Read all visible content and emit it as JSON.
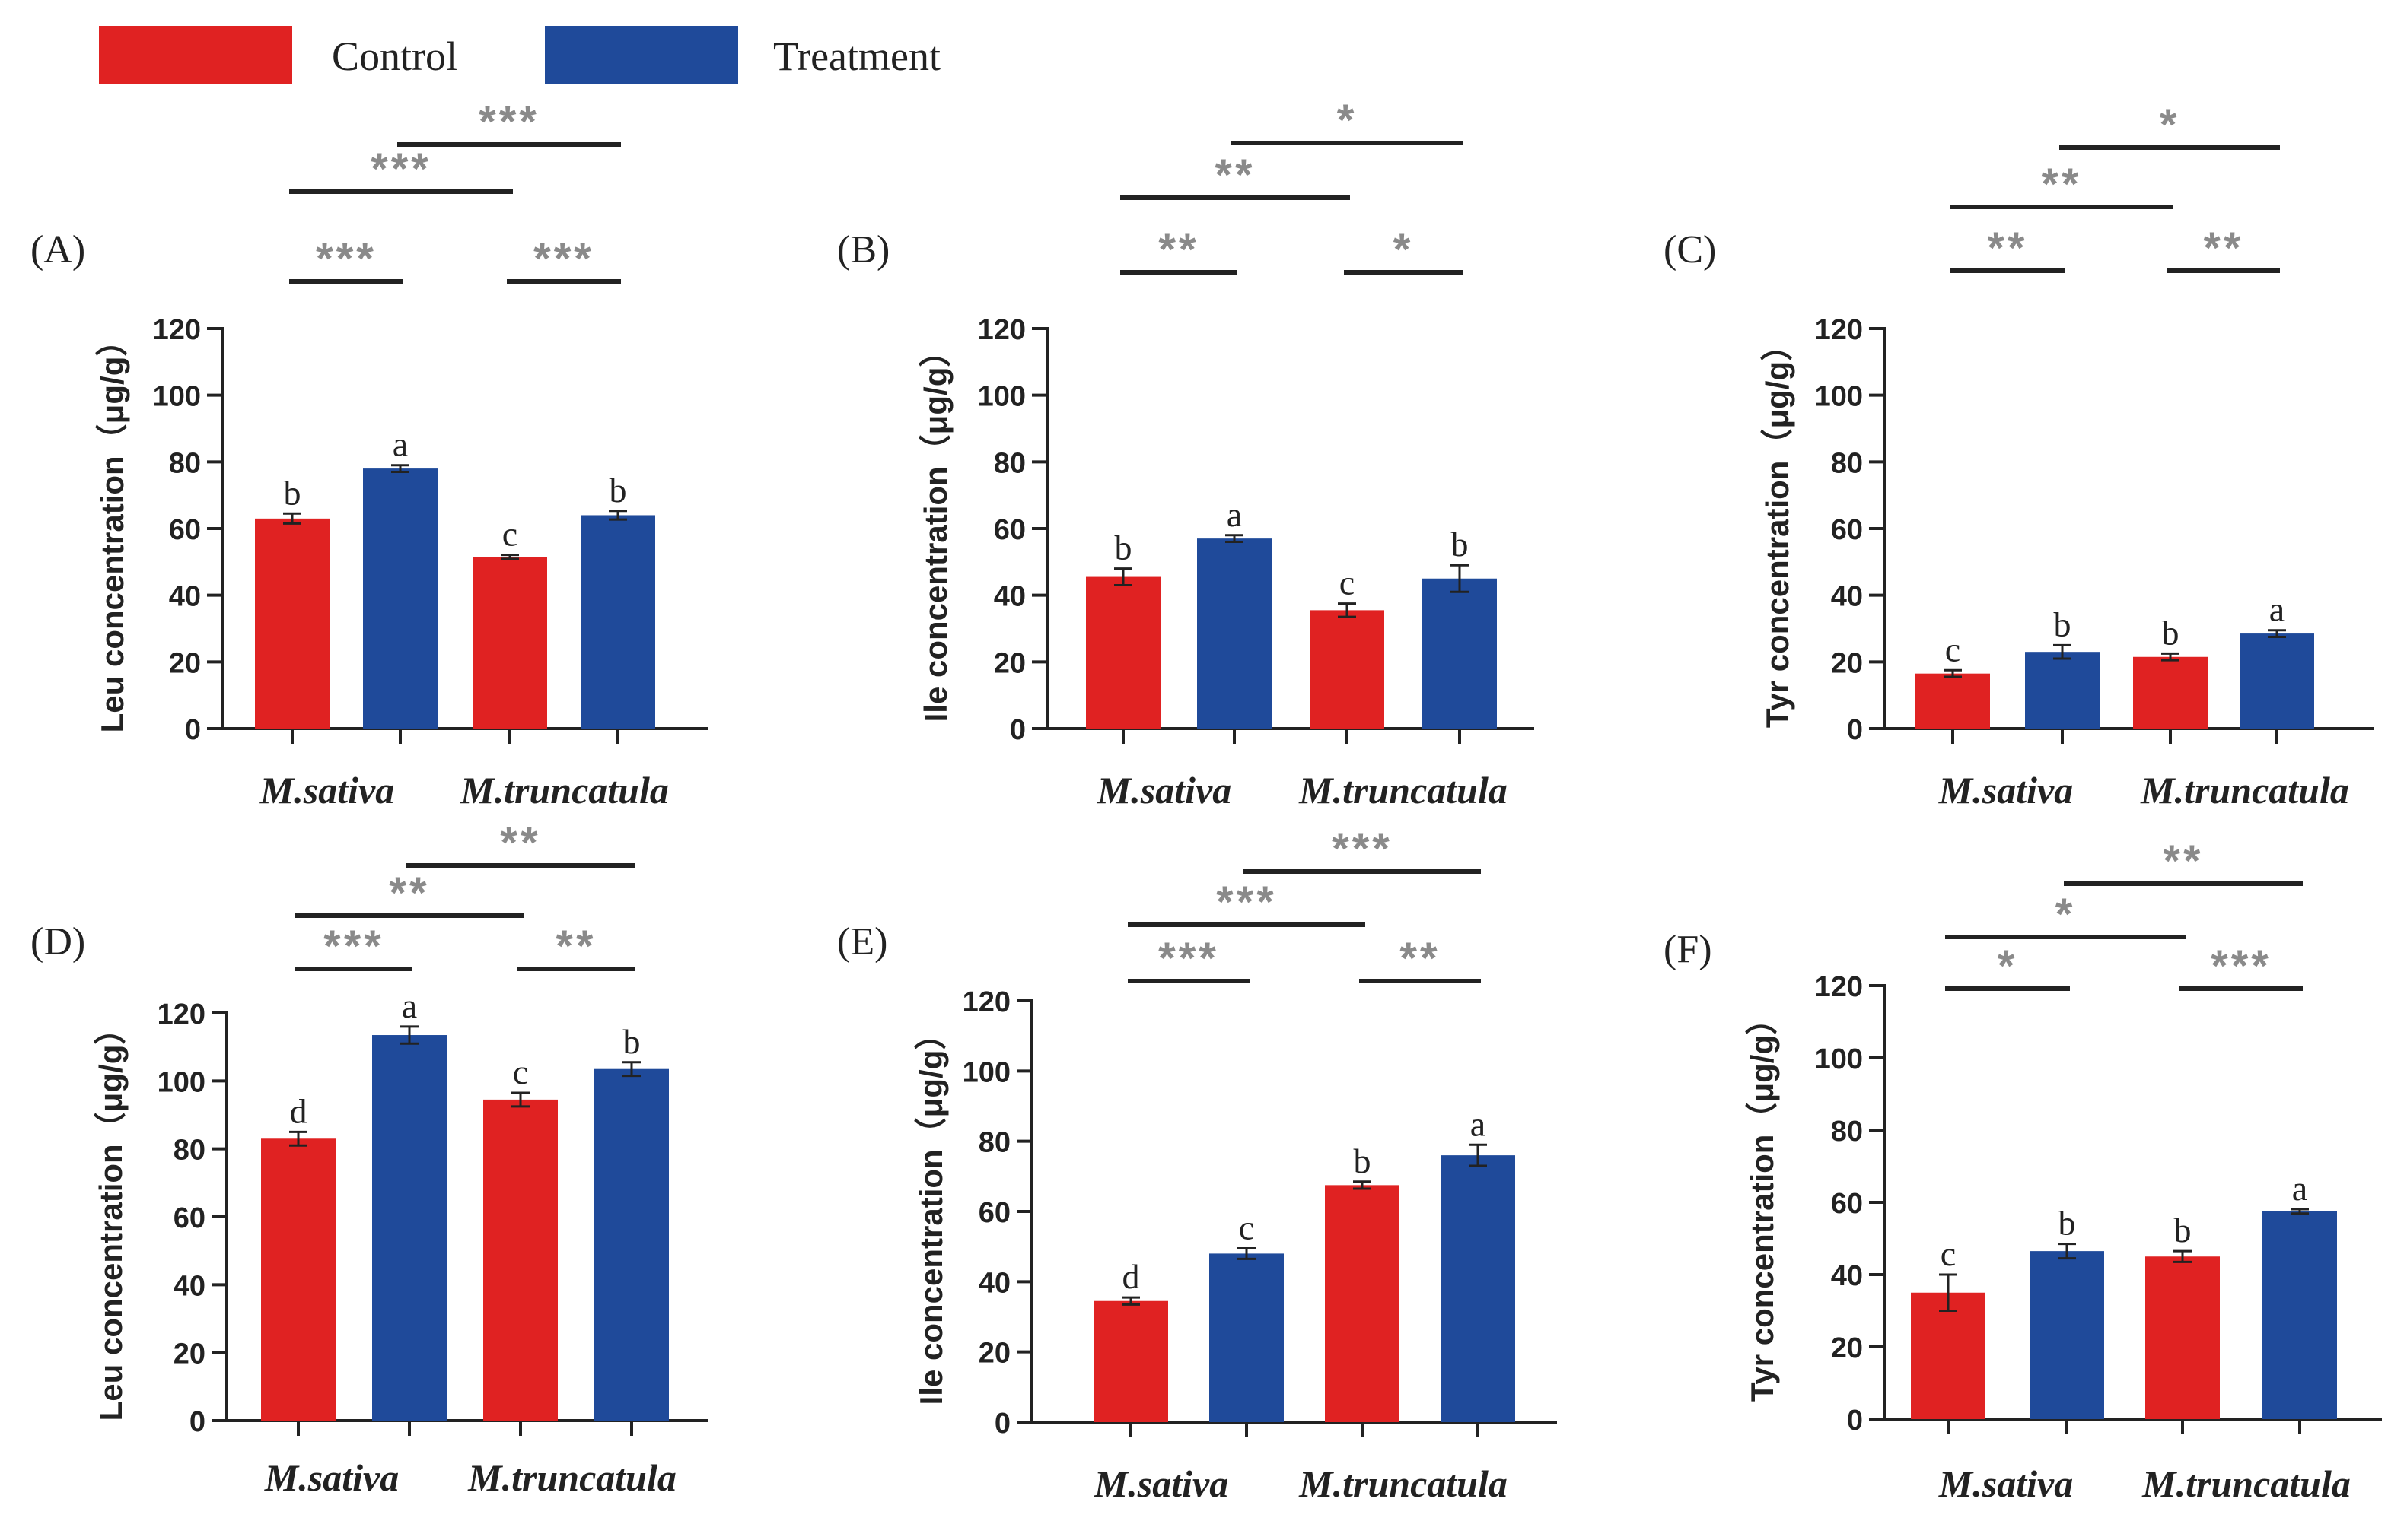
{
  "legend": {
    "items": [
      {
        "label": "Control",
        "color": "#e02222"
      },
      {
        "label": "Treatment",
        "color": "#1f4a9a"
      }
    ]
  },
  "colors": {
    "control": "#e02222",
    "treatment": "#1f4a9a",
    "axis": "#222222",
    "sig": "#8a8a8a"
  },
  "chart_data": [
    {
      "panel": "(A)",
      "type": "bar",
      "ylabel": "Leu concentration（μg/g）",
      "groups": [
        "M.sativa",
        "M.truncatula"
      ],
      "ylim": [
        0,
        120
      ],
      "yticks": [
        0,
        20,
        40,
        60,
        80,
        100,
        120
      ],
      "bars": [
        {
          "series": "Control",
          "group": "M.sativa",
          "value": 63,
          "error": 1.5,
          "letter": "b"
        },
        {
          "series": "Treatment",
          "group": "M.sativa",
          "value": 78,
          "error": 1,
          "letter": "a"
        },
        {
          "series": "Control",
          "group": "M.truncatula",
          "value": 51.5,
          "error": 0.6,
          "letter": "c"
        },
        {
          "series": "Treatment",
          "group": "M.truncatula",
          "value": 64,
          "error": 1.3,
          "letter": "b"
        }
      ],
      "significance": [
        {
          "from": 1,
          "to": 2,
          "level": 3,
          "label": "***"
        },
        {
          "from": 3,
          "to": 4,
          "level": 3,
          "label": "***"
        },
        {
          "from": 1,
          "to": 3,
          "level": 2,
          "label": "***"
        },
        {
          "from": 2,
          "to": 4,
          "level": 1,
          "label": "***"
        }
      ]
    },
    {
      "panel": "(B)",
      "type": "bar",
      "ylabel": "Ile concentration（μg/g）",
      "groups": [
        "M.sativa",
        "M.truncatula"
      ],
      "ylim": [
        0,
        120
      ],
      "yticks": [
        0,
        20,
        40,
        60,
        80,
        100,
        120
      ],
      "bars": [
        {
          "series": "Control",
          "group": "M.sativa",
          "value": 45.5,
          "error": 2.5,
          "letter": "b"
        },
        {
          "series": "Treatment",
          "group": "M.sativa",
          "value": 57,
          "error": 1,
          "letter": "a"
        },
        {
          "series": "Control",
          "group": "M.truncatula",
          "value": 35.5,
          "error": 2,
          "letter": "c"
        },
        {
          "series": "Treatment",
          "group": "M.truncatula",
          "value": 45,
          "error": 4,
          "letter": "b"
        }
      ],
      "significance": [
        {
          "from": 1,
          "to": 2,
          "level": 3,
          "label": "**"
        },
        {
          "from": 3,
          "to": 4,
          "level": 3,
          "label": "*"
        },
        {
          "from": 1,
          "to": 3,
          "level": 2,
          "label": "**"
        },
        {
          "from": 2,
          "to": 4,
          "level": 1,
          "label": "*"
        }
      ]
    },
    {
      "panel": "(C)",
      "type": "bar",
      "ylabel": "Tyr concentration（μg/g）",
      "groups": [
        "M.sativa",
        "M.truncatula"
      ],
      "ylim": [
        0,
        120
      ],
      "yticks": [
        0,
        20,
        40,
        60,
        80,
        100,
        120
      ],
      "bars": [
        {
          "series": "Control",
          "group": "M.sativa",
          "value": 16.5,
          "error": 1,
          "letter": "c"
        },
        {
          "series": "Treatment",
          "group": "M.sativa",
          "value": 23,
          "error": 2,
          "letter": "b"
        },
        {
          "series": "Control",
          "group": "M.truncatula",
          "value": 21.5,
          "error": 1,
          "letter": "b"
        },
        {
          "series": "Treatment",
          "group": "M.truncatula",
          "value": 28.5,
          "error": 1,
          "letter": "a"
        }
      ],
      "significance": [
        {
          "from": 1,
          "to": 2,
          "level": 3,
          "label": "**"
        },
        {
          "from": 3,
          "to": 4,
          "level": 3,
          "label": "**"
        },
        {
          "from": 1,
          "to": 3,
          "level": 2,
          "label": "**"
        },
        {
          "from": 2,
          "to": 4,
          "level": 1,
          "label": "*"
        }
      ]
    },
    {
      "panel": "(D)",
      "type": "bar",
      "ylabel": "Leu concentration（μg/g）",
      "groups": [
        "M.sativa",
        "M.truncatula"
      ],
      "ylim": [
        0,
        120
      ],
      "yticks": [
        0,
        20,
        40,
        60,
        80,
        100,
        120
      ],
      "bars": [
        {
          "series": "Control",
          "group": "M.sativa",
          "value": 83,
          "error": 2,
          "letter": "d"
        },
        {
          "series": "Treatment",
          "group": "M.sativa",
          "value": 113.5,
          "error": 2.5,
          "letter": "a"
        },
        {
          "series": "Control",
          "group": "M.truncatula",
          "value": 94.5,
          "error": 2,
          "letter": "c"
        },
        {
          "series": "Treatment",
          "group": "M.truncatula",
          "value": 103.5,
          "error": 2,
          "letter": "b"
        }
      ],
      "significance": [
        {
          "from": 1,
          "to": 2,
          "level": 3,
          "label": "***"
        },
        {
          "from": 3,
          "to": 4,
          "level": 3,
          "label": "**"
        },
        {
          "from": 1,
          "to": 3,
          "level": 2,
          "label": "**"
        },
        {
          "from": 2,
          "to": 4,
          "level": 1,
          "label": "**"
        }
      ]
    },
    {
      "panel": "(E)",
      "type": "bar",
      "ylabel": "Ile concentration（μg/g）",
      "groups": [
        "M.sativa",
        "M.truncatula"
      ],
      "ylim": [
        0,
        120
      ],
      "yticks": [
        0,
        20,
        40,
        60,
        80,
        100,
        120
      ],
      "bars": [
        {
          "series": "Control",
          "group": "M.sativa",
          "value": 34.5,
          "error": 1,
          "letter": "d"
        },
        {
          "series": "Treatment",
          "group": "M.sativa",
          "value": 48,
          "error": 1.5,
          "letter": "c"
        },
        {
          "series": "Control",
          "group": "M.truncatula",
          "value": 67.5,
          "error": 1,
          "letter": "b"
        },
        {
          "series": "Treatment",
          "group": "M.truncatula",
          "value": 76,
          "error": 3,
          "letter": "a"
        }
      ],
      "significance": [
        {
          "from": 1,
          "to": 2,
          "level": 3,
          "label": "***"
        },
        {
          "from": 3,
          "to": 4,
          "level": 3,
          "label": "**"
        },
        {
          "from": 1,
          "to": 3,
          "level": 2,
          "label": "***"
        },
        {
          "from": 2,
          "to": 4,
          "level": 1,
          "label": "***"
        }
      ]
    },
    {
      "panel": "(F)",
      "type": "bar",
      "ylabel": "Tyr concentration（μg/g）",
      "groups": [
        "M.sativa",
        "M.truncatula"
      ],
      "ylim": [
        0,
        120
      ],
      "yticks": [
        0,
        20,
        40,
        60,
        80,
        100,
        120
      ],
      "bars": [
        {
          "series": "Control",
          "group": "M.sativa",
          "value": 35,
          "error": 5,
          "letter": "c"
        },
        {
          "series": "Treatment",
          "group": "M.sativa",
          "value": 46.5,
          "error": 2,
          "letter": "b"
        },
        {
          "series": "Control",
          "group": "M.truncatula",
          "value": 45,
          "error": 1.5,
          "letter": "b"
        },
        {
          "series": "Treatment",
          "group": "M.truncatula",
          "value": 57.5,
          "error": 0.6,
          "letter": "a"
        }
      ],
      "significance": [
        {
          "from": 1,
          "to": 2,
          "level": 3,
          "label": "*"
        },
        {
          "from": 3,
          "to": 4,
          "level": 3,
          "label": "***"
        },
        {
          "from": 1,
          "to": 3,
          "level": 2,
          "label": "*"
        },
        {
          "from": 2,
          "to": 4,
          "level": 1,
          "label": "**"
        }
      ]
    }
  ]
}
